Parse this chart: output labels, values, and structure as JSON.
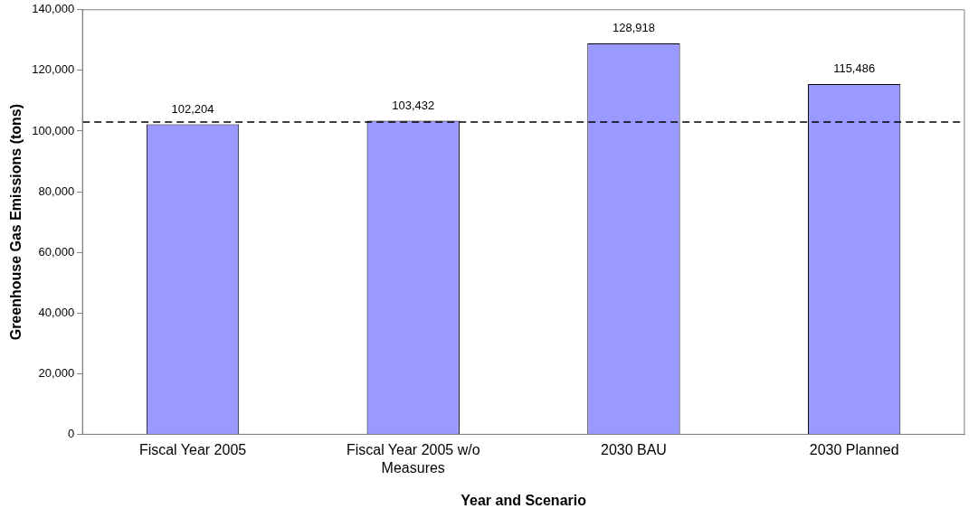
{
  "chart_data": {
    "type": "bar",
    "xlabel": "Year and Scenario",
    "ylabel": "Greenhouse Gas Emissions (tons)",
    "categories": [
      "Fiscal Year 2005",
      "Fiscal Year 2005 w/o Measures",
      "2030 BAU",
      "2030 Planned"
    ],
    "values": [
      102204,
      103432,
      128918,
      115486
    ],
    "color": "#9999ff",
    "value_labels": [
      "102,204",
      "103,432",
      "128,918",
      "115,486"
    ],
    "ylim": [
      0,
      140000
    ],
    "yticks": [
      {
        "value": 0,
        "label": "0"
      },
      {
        "value": 20000,
        "label": "20,000"
      },
      {
        "value": 40000,
        "label": "40,000"
      },
      {
        "value": 60000,
        "label": "60,000"
      },
      {
        "value": 80000,
        "label": "80,000"
      },
      {
        "value": 100000,
        "label": "100,000"
      },
      {
        "value": 120000,
        "label": "120,000"
      },
      {
        "value": 140000,
        "label": "140,000"
      }
    ],
    "ref_lines": [
      {
        "axis": "y",
        "value": 103000,
        "line_style": "dashed",
        "color": "#000000"
      }
    ],
    "grid": false,
    "legend": false
  }
}
